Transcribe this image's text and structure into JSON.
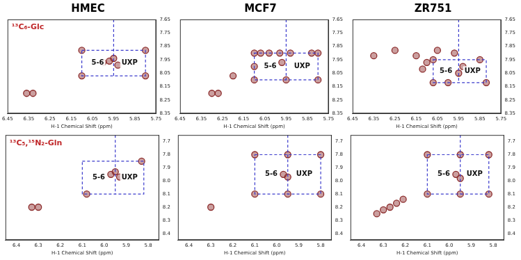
{
  "chart_data": [
    {
      "type": "scatter",
      "title": "HMEC",
      "label": "¹³C₆-Glc",
      "x_label": "H-1 Chemical Shift (ppm)",
      "xlim": [
        6.45,
        5.75
      ],
      "xticks": [
        6.45,
        6.35,
        6.25,
        6.15,
        6.05,
        5.95,
        5.85,
        5.75
      ],
      "ylim": [
        8.35,
        7.65
      ],
      "yticks": [
        7.65,
        7.75,
        7.85,
        7.95,
        8.05,
        8.15,
        8.25,
        8.35
      ],
      "x": [
        6.36,
        6.33,
        6.1,
        6.1,
        5.8,
        5.8,
        5.97,
        5.95,
        5.93,
        6.0
      ],
      "values": [
        8.2,
        8.2,
        7.88,
        8.07,
        7.88,
        8.07,
        7.96,
        7.94,
        7.99,
        7.97
      ],
      "color": "#8b2a2a",
      "box": {
        "x": [
          6.1,
          5.8
        ],
        "y": [
          7.88,
          8.07
        ]
      },
      "divider_x": 5.95,
      "annotations": [
        "5-6",
        "UXP"
      ],
      "grid": false
    },
    {
      "type": "scatter",
      "title": "MCF7",
      "x_label": "H-1 Chemical Shift (ppm)",
      "xlim": [
        6.45,
        5.75
      ],
      "xticks": [
        6.45,
        6.35,
        6.25,
        6.15,
        6.05,
        5.95,
        5.85,
        5.75
      ],
      "ylim": [
        8.35,
        7.65
      ],
      "yticks": [
        7.65,
        7.75,
        7.85,
        7.95,
        8.05,
        8.15,
        8.25,
        8.35
      ],
      "x": [
        6.3,
        6.27,
        6.2,
        6.1,
        6.1,
        6.07,
        6.03,
        5.98,
        5.93,
        5.83,
        5.8,
        5.8,
        5.97,
        5.95,
        6.1
      ],
      "values": [
        8.2,
        8.2,
        8.07,
        7.9,
        8.1,
        7.9,
        7.9,
        7.9,
        7.9,
        7.9,
        7.9,
        8.1,
        7.97,
        8.1,
        8.0
      ],
      "color": "#8b2a2a",
      "box": {
        "x": [
          6.1,
          5.8
        ],
        "y": [
          7.9,
          8.1
        ]
      },
      "divider_x": 5.95,
      "annotations": [
        "5-6",
        "UXP"
      ],
      "grid": false
    },
    {
      "type": "scatter",
      "title": "ZR751",
      "x_label": "H-1 Chemical Shift (ppm)",
      "xlim": [
        6.45,
        5.75
      ],
      "xticks": [
        6.45,
        6.35,
        6.25,
        6.15,
        6.05,
        5.95,
        5.85,
        5.75
      ],
      "ylim": [
        8.35,
        7.65
      ],
      "yticks": [
        7.65,
        7.75,
        7.85,
        7.95,
        8.05,
        8.15,
        8.25,
        8.35
      ],
      "x": [
        6.35,
        6.25,
        6.15,
        6.1,
        6.05,
        6.07,
        5.97,
        5.93,
        5.85,
        5.82,
        6.07,
        6.0,
        5.95,
        6.12
      ],
      "values": [
        7.92,
        7.88,
        7.92,
        7.97,
        7.88,
        8.12,
        7.9,
        8.0,
        7.95,
        8.12,
        7.95,
        8.12,
        8.05,
        8.02
      ],
      "color": "#8b2a2a",
      "box": {
        "x": [
          6.07,
          5.82
        ],
        "y": [
          7.95,
          8.12
        ]
      },
      "divider_x": 5.95,
      "annotations": [
        "5-6",
        "UXP"
      ],
      "grid": false
    },
    {
      "type": "scatter",
      "label": "¹³C₅,¹⁵N₂-Gln",
      "x_label": "H-1 Chemical Shift (ppm)",
      "xlim": [
        6.45,
        5.75
      ],
      "xticks": [
        6.4,
        6.3,
        6.2,
        6.1,
        {
          "value": 6,
          "label": "6.0"
        },
        5.9,
        5.8
      ],
      "ylim": [
        8.45,
        7.65
      ],
      "yticks": [
        7.7,
        7.8,
        7.9,
        {
          "value": 8,
          "label": "8.0"
        },
        8.1,
        8.2,
        8.3,
        8.4
      ],
      "x": [
        6.33,
        6.3,
        5.97,
        5.95,
        5.93,
        6.08,
        5.83
      ],
      "values": [
        8.2,
        8.2,
        7.95,
        7.93,
        7.97,
        8.1,
        7.85
      ],
      "color": "#8b2a2a",
      "box": {
        "x": [
          6.1,
          5.82
        ],
        "y": [
          7.85,
          8.1
        ]
      },
      "divider_x": 5.95,
      "annotations": [
        "5-6",
        "UXP"
      ],
      "grid": false
    },
    {
      "type": "scatter",
      "x_label": "H-1 Chemical Shift (ppm)",
      "xlim": [
        6.45,
        5.75
      ],
      "xticks": [
        6.4,
        6.3,
        6.2,
        6.1,
        {
          "value": 6,
          "label": "6.0"
        },
        5.9,
        5.8
      ],
      "ylim": [
        8.45,
        7.65
      ],
      "yticks": [
        7.7,
        7.8,
        7.9,
        {
          "value": 8,
          "label": "8.0"
        },
        8.1,
        8.2,
        8.3,
        8.4
      ],
      "x": [
        6.3,
        6.1,
        6.1,
        5.8,
        5.8,
        5.95,
        5.95,
        5.97,
        5.95
      ],
      "values": [
        8.2,
        7.8,
        8.1,
        7.8,
        8.1,
        7.8,
        8.1,
        7.95,
        7.97
      ],
      "color": "#8b2a2a",
      "box": {
        "x": [
          6.1,
          5.8
        ],
        "y": [
          7.8,
          8.1
        ]
      },
      "divider_x": 5.95,
      "annotations": [
        "5-6",
        "UXP"
      ],
      "grid": false
    },
    {
      "type": "scatter",
      "x_label": "H-1 Chemical Shift (ppm)",
      "xlim": [
        6.45,
        5.75
      ],
      "xticks": [
        6.4,
        6.3,
        6.2,
        6.1,
        {
          "value": 6,
          "label": "6.0"
        },
        5.9,
        5.8
      ],
      "ylim": [
        8.45,
        7.65
      ],
      "yticks": [
        7.7,
        7.8,
        7.9,
        {
          "value": 8,
          "label": "8.0"
        },
        8.1,
        8.2,
        8.3,
        8.4
      ],
      "x": [
        6.33,
        6.3,
        6.27,
        6.24,
        6.21,
        6.1,
        6.1,
        5.82,
        5.82,
        5.95,
        5.95,
        5.97,
        5.95
      ],
      "values": [
        8.25,
        8.22,
        8.2,
        8.17,
        8.14,
        7.8,
        8.1,
        7.8,
        8.1,
        7.8,
        8.1,
        7.95,
        7.98
      ],
      "color": "#8b2a2a",
      "box": {
        "x": [
          6.1,
          5.82
        ],
        "y": [
          7.8,
          8.1
        ]
      },
      "divider_x": 5.95,
      "annotations": [
        "5-6",
        "UXP"
      ],
      "grid": false
    }
  ]
}
